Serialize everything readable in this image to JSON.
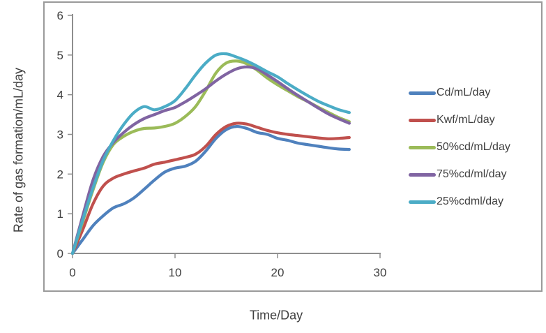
{
  "chart_data": {
    "type": "line",
    "xlabel": "Time/Day",
    "ylabel": "Rate of gas formation/mL/day",
    "xlim": [
      0,
      30
    ],
    "ylim": [
      0,
      6
    ],
    "x_ticks": [
      0,
      10,
      20,
      30
    ],
    "y_ticks": [
      0,
      1,
      2,
      3,
      4,
      5,
      6
    ],
    "grid": false,
    "legend_position": "right",
    "x": [
      0,
      1,
      2,
      3,
      4,
      5,
      6,
      7,
      8,
      9,
      10,
      11,
      12,
      13,
      14,
      15,
      16,
      17,
      18,
      19,
      20,
      21,
      22,
      23,
      24,
      25,
      26,
      27
    ],
    "series": [
      {
        "name": "Cd/mL/day",
        "color": "#4F81BD",
        "values": [
          0,
          0.35,
          0.7,
          0.95,
          1.15,
          1.25,
          1.4,
          1.62,
          1.85,
          2.05,
          2.15,
          2.2,
          2.32,
          2.58,
          2.9,
          3.12,
          3.2,
          3.15,
          3.05,
          3.0,
          2.9,
          2.85,
          2.78,
          2.74,
          2.7,
          2.66,
          2.63,
          2.62
        ]
      },
      {
        "name": "Kwf/mL/day",
        "color": "#C0504D",
        "values": [
          0,
          0.6,
          1.25,
          1.7,
          1.9,
          2.0,
          2.08,
          2.15,
          2.25,
          2.3,
          2.36,
          2.42,
          2.5,
          2.7,
          3.0,
          3.2,
          3.28,
          3.26,
          3.18,
          3.1,
          3.04,
          3.0,
          2.97,
          2.94,
          2.91,
          2.89,
          2.9,
          2.92
        ]
      },
      {
        "name": "50%cd/mL/day",
        "color": "#9BBB59",
        "values": [
          0,
          0.8,
          1.6,
          2.3,
          2.75,
          2.95,
          3.08,
          3.15,
          3.16,
          3.2,
          3.28,
          3.45,
          3.7,
          4.1,
          4.55,
          4.8,
          4.85,
          4.78,
          4.62,
          4.42,
          4.25,
          4.1,
          3.95,
          3.82,
          3.68,
          3.55,
          3.42,
          3.32
        ]
      },
      {
        "name": "75%cd/ml/day",
        "color": "#8064A2",
        "values": [
          0,
          0.95,
          1.85,
          2.45,
          2.8,
          3.05,
          3.25,
          3.4,
          3.5,
          3.6,
          3.68,
          3.82,
          3.98,
          4.15,
          4.35,
          4.52,
          4.65,
          4.7,
          4.65,
          4.5,
          4.33,
          4.15,
          3.98,
          3.82,
          3.66,
          3.51,
          3.39,
          3.28
        ]
      },
      {
        "name": "25%cdml/day",
        "color": "#4BACC6",
        "values": [
          0,
          0.85,
          1.65,
          2.35,
          2.85,
          3.25,
          3.55,
          3.7,
          3.62,
          3.7,
          3.85,
          4.15,
          4.5,
          4.8,
          5.0,
          5.03,
          4.95,
          4.85,
          4.72,
          4.58,
          4.45,
          4.28,
          4.12,
          3.97,
          3.83,
          3.72,
          3.62,
          3.55
        ]
      }
    ],
    "style": {
      "axis_color": "#8E8E8E",
      "text_color": "#3F3F3F",
      "frame_color": "#9A9A9A",
      "line_width": 4.2
    }
  }
}
